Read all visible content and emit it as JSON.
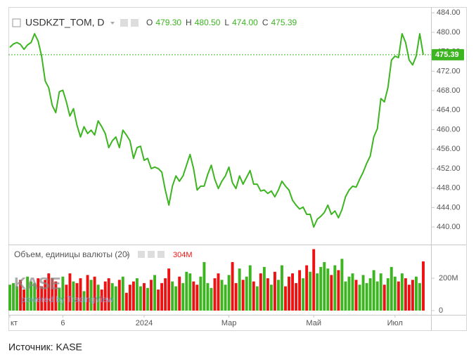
{
  "chart_data": [
    {
      "type": "line",
      "title": "USDKZT_TOM, D",
      "color": "#3cb521",
      "ohlc": [
        {
          "key": "O",
          "value": "479.30"
        },
        {
          "key": "H",
          "value": "480.50"
        },
        {
          "key": "L",
          "value": "474.00"
        },
        {
          "key": "C",
          "value": "475.39"
        }
      ],
      "last_price": {
        "value": 475.39,
        "label": "475.39"
      },
      "categories": [
        "кт",
        null,
        null,
        null,
        null,
        null,
        null,
        null,
        null,
        null,
        null,
        null,
        null,
        null,
        null,
        "6",
        null,
        null,
        null,
        null,
        null,
        null,
        null,
        null,
        null,
        null,
        null,
        null,
        null,
        null,
        null,
        null,
        null,
        null,
        null,
        null,
        null,
        null,
        "2024",
        null,
        null,
        null,
        null,
        null,
        null,
        null,
        null,
        null,
        null,
        null,
        null,
        null,
        null,
        null,
        null,
        null,
        null,
        null,
        null,
        null,
        null,
        null,
        "Мар",
        null,
        null,
        null,
        null,
        null,
        null,
        null,
        null,
        null,
        null,
        null,
        null,
        null,
        null,
        null,
        null,
        null,
        null,
        null,
        null,
        null,
        null,
        null,
        "Май",
        null,
        null,
        null,
        null,
        null,
        null,
        null,
        null,
        null,
        null,
        null,
        null,
        null,
        null,
        null,
        null,
        null,
        null,
        null,
        null,
        null,
        null,
        "Июл",
        null,
        null,
        null,
        null,
        null,
        null,
        null,
        null
      ],
      "values": [
        476.9,
        477.6,
        477.9,
        477.5,
        476.5,
        477.4,
        477.9,
        479.7,
        478.2,
        475.1,
        470.0,
        468.6,
        465.0,
        463.5,
        467.8,
        468.1,
        465.7,
        462.8,
        464.3,
        460.9,
        458.5,
        460.6,
        459.2,
        459.9,
        458.9,
        461.8,
        460.6,
        459.2,
        456.3,
        457.7,
        458.5,
        456.3,
        459.9,
        458.9,
        457.7,
        454.1,
        456.3,
        456.6,
        453.7,
        454.1,
        452.0,
        452.3,
        452.0,
        451.3,
        447.6,
        444.5,
        448.4,
        450.5,
        449.4,
        450.5,
        452.7,
        454.9,
        452.0,
        447.6,
        448.4,
        448.4,
        450.8,
        452.7,
        449.8,
        447.9,
        449.4,
        450.5,
        452.3,
        449.1,
        447.9,
        450.5,
        448.8,
        450.2,
        451.6,
        448.8,
        448.8,
        447.4,
        447.6,
        446.9,
        447.4,
        446.2,
        447.6,
        449.4,
        448.4,
        447.6,
        445.5,
        444.5,
        443.7,
        444.1,
        442.6,
        442.6,
        440.0,
        441.6,
        442.2,
        443.0,
        444.5,
        442.6,
        443.3,
        441.9,
        443.6,
        446.2,
        447.6,
        448.4,
        448.2,
        449.8,
        451.3,
        453.1,
        454.6,
        458.5,
        460.2,
        466.4,
        465.7,
        468.6,
        474.3,
        475.1,
        474.8,
        479.7,
        477.9,
        474.3,
        473.3,
        475.1,
        479.7,
        475.39
      ],
      "ylim": [
        436.4,
        484.9
      ],
      "yticks": [
        {
          "value": 440,
          "label": "440.00"
        },
        {
          "value": 444,
          "label": "444.00"
        },
        {
          "value": 448,
          "label": "448.00"
        },
        {
          "value": 452,
          "label": "452.00"
        },
        {
          "value": 456,
          "label": "456.00"
        },
        {
          "value": 460,
          "label": "460.00"
        },
        {
          "value": 464,
          "label": "464.00"
        },
        {
          "value": 468,
          "label": "468.00"
        },
        {
          "value": 472,
          "label": "472.00"
        },
        {
          "value": 476,
          "label": "476.00"
        },
        {
          "value": 480,
          "label": "480.00"
        },
        {
          "value": 484,
          "label": "484.00"
        }
      ]
    },
    {
      "type": "bar",
      "title": "Объем, единицы валюты (20)",
      "last_label": "304M",
      "up_color": "#3cb521",
      "down_color": "#ee1111",
      "values": [
        160,
        170,
        150,
        190,
        130,
        210,
        180,
        170,
        200,
        150,
        190,
        230,
        200,
        180,
        140,
        210,
        160,
        230,
        180,
        170,
        200,
        120,
        220,
        190,
        210,
        160,
        130,
        180,
        200,
        170,
        150,
        190,
        210,
        110,
        160,
        180,
        200,
        150,
        170,
        140,
        190,
        220,
        130,
        170,
        200,
        260,
        180,
        150,
        210,
        170,
        240,
        230,
        180,
        160,
        210,
        300,
        170,
        140,
        200,
        230,
        190,
        160,
        220,
        300,
        170,
        260,
        190,
        210,
        280,
        180,
        150,
        230,
        270,
        200,
        160,
        240,
        190,
        280,
        150,
        210,
        230,
        170,
        250,
        200,
        280,
        240,
        380,
        230,
        270,
        300,
        260,
        220,
        280,
        250,
        320,
        180,
        210,
        230,
        190,
        160,
        220,
        170,
        200,
        250,
        180,
        230,
        160,
        200,
        270,
        210,
        180,
        230,
        200,
        160,
        190,
        210,
        170,
        304
      ],
      "ylim": [
        0,
        391
      ],
      "yticks": [
        0,
        {
          "value": 200,
          "label": "200M"
        }
      ]
    }
  ],
  "watermark": "KASE",
  "watermark_sub": "powered by TradingView",
  "source": "Источник: KASE"
}
